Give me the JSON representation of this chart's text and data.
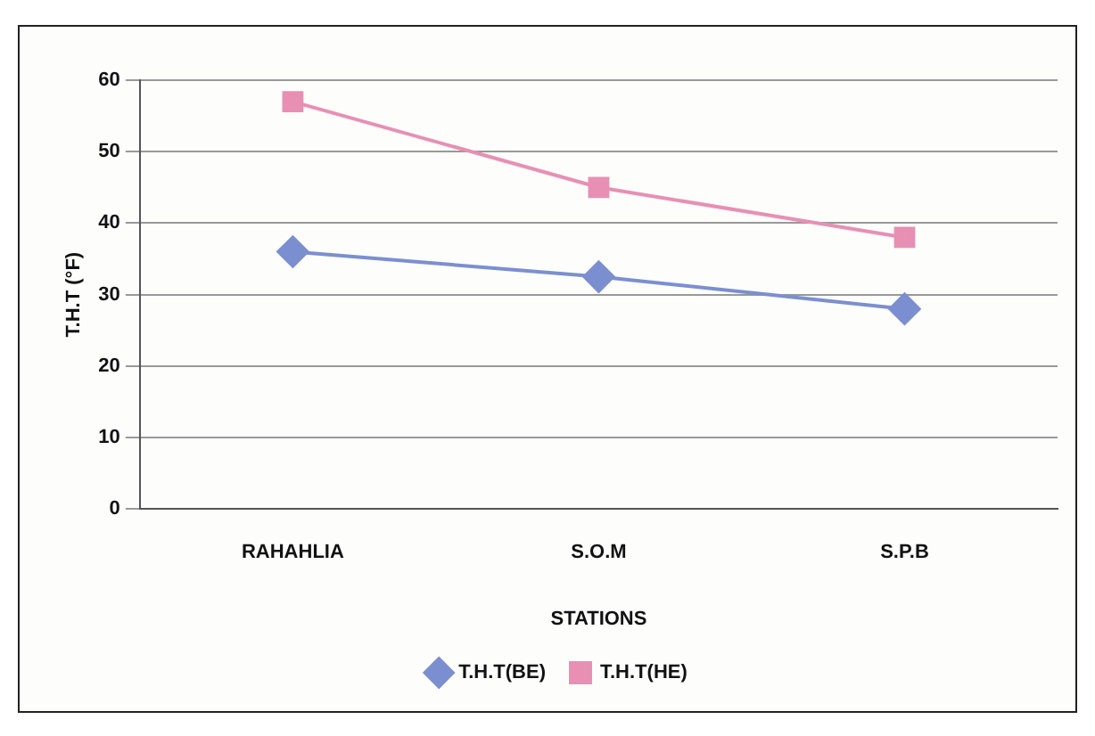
{
  "chart_data": {
    "type": "line",
    "xlabel": "STATIONS",
    "ylabel": "T.H.T (°F)",
    "categories": [
      "RAHAHLIA",
      "S.O.M",
      "S.P.B"
    ],
    "series": [
      {
        "name": "T.H.T(BE)",
        "color": "#7b8fd0",
        "marker": "diamond",
        "values": [
          36,
          32.5,
          28
        ]
      },
      {
        "name": "T.H.T(HE)",
        "color": "#e88fb4",
        "marker": "square",
        "values": [
          57,
          45,
          38
        ]
      }
    ],
    "ylim": [
      0,
      60
    ],
    "yticks": [
      0,
      10,
      20,
      30,
      40,
      50,
      60
    ],
    "grid": "y",
    "legend": "bottom",
    "line_style": "solid"
  }
}
